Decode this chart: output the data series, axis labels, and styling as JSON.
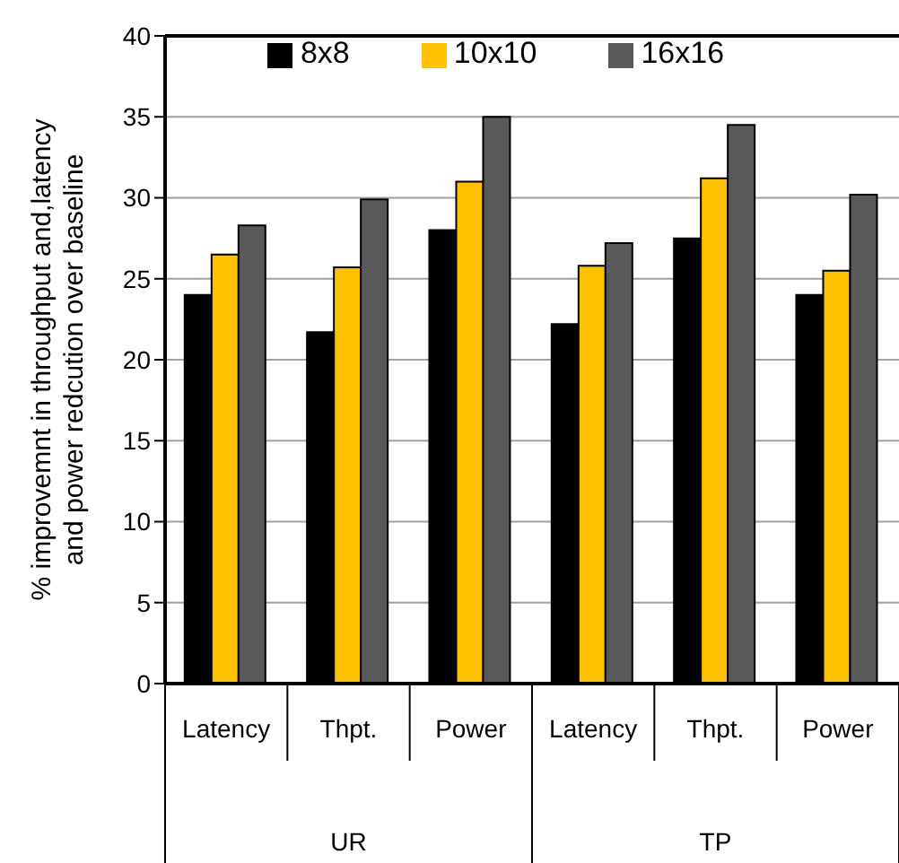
{
  "chart_data": {
    "type": "bar",
    "ylabel": "% improvemnt in throughput and,latency and power redcution over baseline",
    "categories": [
      "Latency",
      "Thpt.",
      "Power",
      "Latency",
      "Thpt.",
      "Power"
    ],
    "annotations": [
      "UR",
      "TP"
    ],
    "series": [
      {
        "name": "8x8",
        "color": "#000000",
        "values": [
          24,
          21.7,
          28,
          22.2,
          27.5,
          24
        ]
      },
      {
        "name": "10x10",
        "color": "#ffc000",
        "values": [
          26.5,
          25.7,
          31,
          25.8,
          31.2,
          25.5
        ]
      },
      {
        "name": "16x16",
        "color": "#595959",
        "values": [
          28.3,
          29.9,
          35,
          27.2,
          34.5,
          30.2
        ]
      }
    ],
    "ylim": [
      0,
      40
    ],
    "yticks": [
      0,
      5,
      10,
      15,
      20,
      25,
      30,
      35,
      40
    ],
    "grid": "y",
    "legend": "top"
  }
}
